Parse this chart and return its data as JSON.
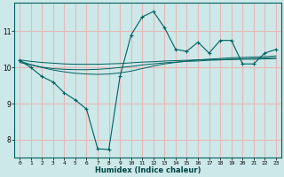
{
  "xlabel": "Humidex (Indice chaleur)",
  "ylabel": "",
  "background_color": "#cce8e8",
  "line_color": "#006060",
  "grid_color": "#e8b8b8",
  "xlim": [
    -0.5,
    23.5
  ],
  "ylim": [
    7.5,
    11.8
  ],
  "yticks": [
    8,
    9,
    10,
    11
  ],
  "xticks": [
    0,
    1,
    2,
    3,
    4,
    5,
    6,
    7,
    8,
    9,
    10,
    11,
    12,
    13,
    14,
    15,
    16,
    17,
    18,
    19,
    20,
    21,
    22,
    23
  ],
  "main_line_y": [
    10.2,
    10.0,
    9.75,
    9.6,
    9.3,
    9.1,
    8.85,
    7.75,
    7.73,
    9.75,
    10.9,
    11.4,
    11.55,
    11.1,
    10.5,
    10.45,
    10.7,
    10.4,
    10.75,
    10.75,
    10.1,
    10.1,
    10.4,
    10.5
  ],
  "trend1_y": [
    10.18,
    10.08,
    10.0,
    9.93,
    9.88,
    9.84,
    9.82,
    9.81,
    9.82,
    9.85,
    9.9,
    9.97,
    10.04,
    10.1,
    10.14,
    10.18,
    10.21,
    10.23,
    10.25,
    10.27,
    10.28,
    10.29,
    10.3,
    10.32
  ],
  "trend2_y": [
    10.14,
    10.07,
    10.01,
    9.97,
    9.95,
    9.94,
    9.94,
    9.95,
    9.97,
    10.0,
    10.03,
    10.07,
    10.1,
    10.13,
    10.15,
    10.17,
    10.18,
    10.2,
    10.21,
    10.22,
    10.23,
    10.23,
    10.24,
    10.25
  ],
  "trend3_y": [
    10.21,
    10.17,
    10.14,
    10.12,
    10.1,
    10.09,
    10.09,
    10.09,
    10.1,
    10.11,
    10.13,
    10.15,
    10.16,
    10.18,
    10.19,
    10.2,
    10.21,
    10.22,
    10.22,
    10.23,
    10.24,
    10.25,
    10.26,
    10.27
  ]
}
